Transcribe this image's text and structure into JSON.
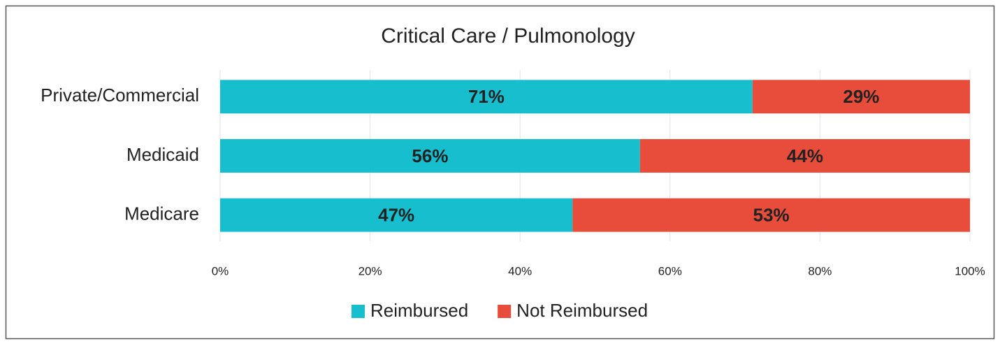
{
  "chart_data": {
    "type": "stacked-bar-horizontal",
    "title": "Critical Care / Pulmonology",
    "categories": [
      "Private/Commercial",
      "Medicaid",
      "Medicare"
    ],
    "series": [
      {
        "name": "Reimbursed",
        "color": "#17bece",
        "values": [
          71,
          56,
          47
        ],
        "value_labels": [
          "71%",
          "56%",
          "47%"
        ]
      },
      {
        "name": "Not Reimbursed",
        "color": "#e84c3b",
        "values": [
          29,
          44,
          53
        ],
        "value_labels": [
          "29%",
          "44%",
          "53%"
        ]
      }
    ],
    "xlim": [
      0,
      100
    ],
    "xticks": [
      {
        "value": 0,
        "label": "0%"
      },
      {
        "value": 20,
        "label": "20%"
      },
      {
        "value": 40,
        "label": "40%"
      },
      {
        "value": 60,
        "label": "60%"
      },
      {
        "value": 80,
        "label": "80%"
      },
      {
        "value": 100,
        "label": "100%"
      }
    ],
    "grid": true,
    "legend": "bottom"
  }
}
